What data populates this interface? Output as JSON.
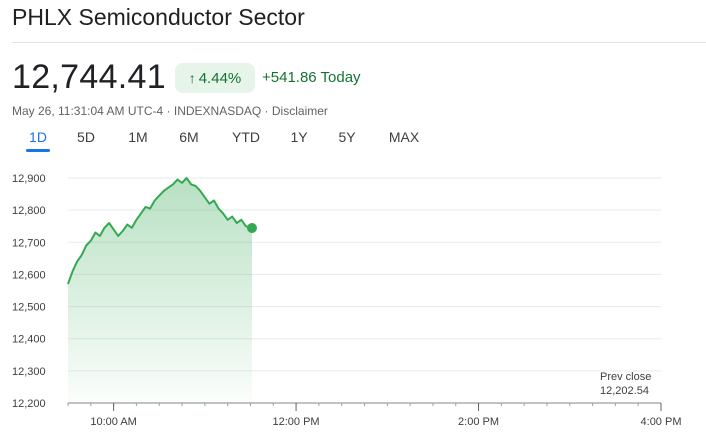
{
  "header": {
    "title": "PHLX Semiconductor Sector",
    "price": "12,744.41",
    "change_percent": "4.44%",
    "change_today": "+541.86 Today",
    "timestamp": "May 26, 11:31:04 AM UTC-4",
    "exchange": "INDEXNASDAQ",
    "disclaimer": "Disclaimer",
    "separator": " · "
  },
  "tabs": [
    {
      "label": "1D",
      "active": true
    },
    {
      "label": "5D",
      "active": false
    },
    {
      "label": "1M",
      "active": false
    },
    {
      "label": "6M",
      "active": false
    },
    {
      "label": "YTD",
      "active": false
    },
    {
      "label": "1Y",
      "active": false
    },
    {
      "label": "5Y",
      "active": false
    },
    {
      "label": "MAX",
      "active": false
    }
  ],
  "colors": {
    "positive": "#137333",
    "line": "#34a853",
    "accent": "#1a73e8"
  },
  "icons": {
    "change_arrow": "arrow-up-icon",
    "current_point": "dot-marker"
  },
  "chart_data": {
    "type": "area",
    "ylim": [
      12200,
      12900
    ],
    "y_ticks": [
      12900,
      12800,
      12700,
      12600,
      12500,
      12400,
      12300,
      12200
    ],
    "y_tick_labels": [
      "12,900",
      "12,800",
      "12,700",
      "12,600",
      "12,500",
      "12,400",
      "12,300",
      "12,200"
    ],
    "x_range": [
      "09:30",
      "16:00"
    ],
    "x_ticks": [
      "10:00",
      "12:00",
      "14:00",
      "16:00"
    ],
    "x_tick_labels": [
      "10:00 AM",
      "12:00 PM",
      "2:00 PM",
      "4:00 PM"
    ],
    "prev_close": {
      "label": "Prev close",
      "value_label": "12,202.54",
      "value": 12202.54
    },
    "series": [
      {
        "x": [
          "09:30",
          "09:33",
          "09:36",
          "09:39",
          "09:42",
          "09:45",
          "09:48",
          "09:51",
          "09:54",
          "09:57",
          "10:00",
          "10:03",
          "10:06",
          "10:09",
          "10:12",
          "10:15",
          "10:18",
          "10:21",
          "10:24",
          "10:27",
          "10:30",
          "10:33",
          "10:36",
          "10:39",
          "10:42",
          "10:45",
          "10:48",
          "10:51",
          "10:54",
          "10:57",
          "11:00",
          "11:03",
          "11:06",
          "11:09",
          "11:12",
          "11:15",
          "11:18",
          "11:21",
          "11:24",
          "11:27",
          "11:30",
          "11:31"
        ],
        "y": [
          12570,
          12610,
          12640,
          12660,
          12690,
          12705,
          12730,
          12720,
          12745,
          12760,
          12740,
          12720,
          12735,
          12755,
          12745,
          12770,
          12790,
          12810,
          12805,
          12830,
          12845,
          12860,
          12870,
          12880,
          12895,
          12885,
          12900,
          12880,
          12875,
          12860,
          12840,
          12820,
          12830,
          12805,
          12790,
          12770,
          12780,
          12760,
          12770,
          12750,
          12745,
          12744.41
        ]
      }
    ],
    "grid": true
  }
}
